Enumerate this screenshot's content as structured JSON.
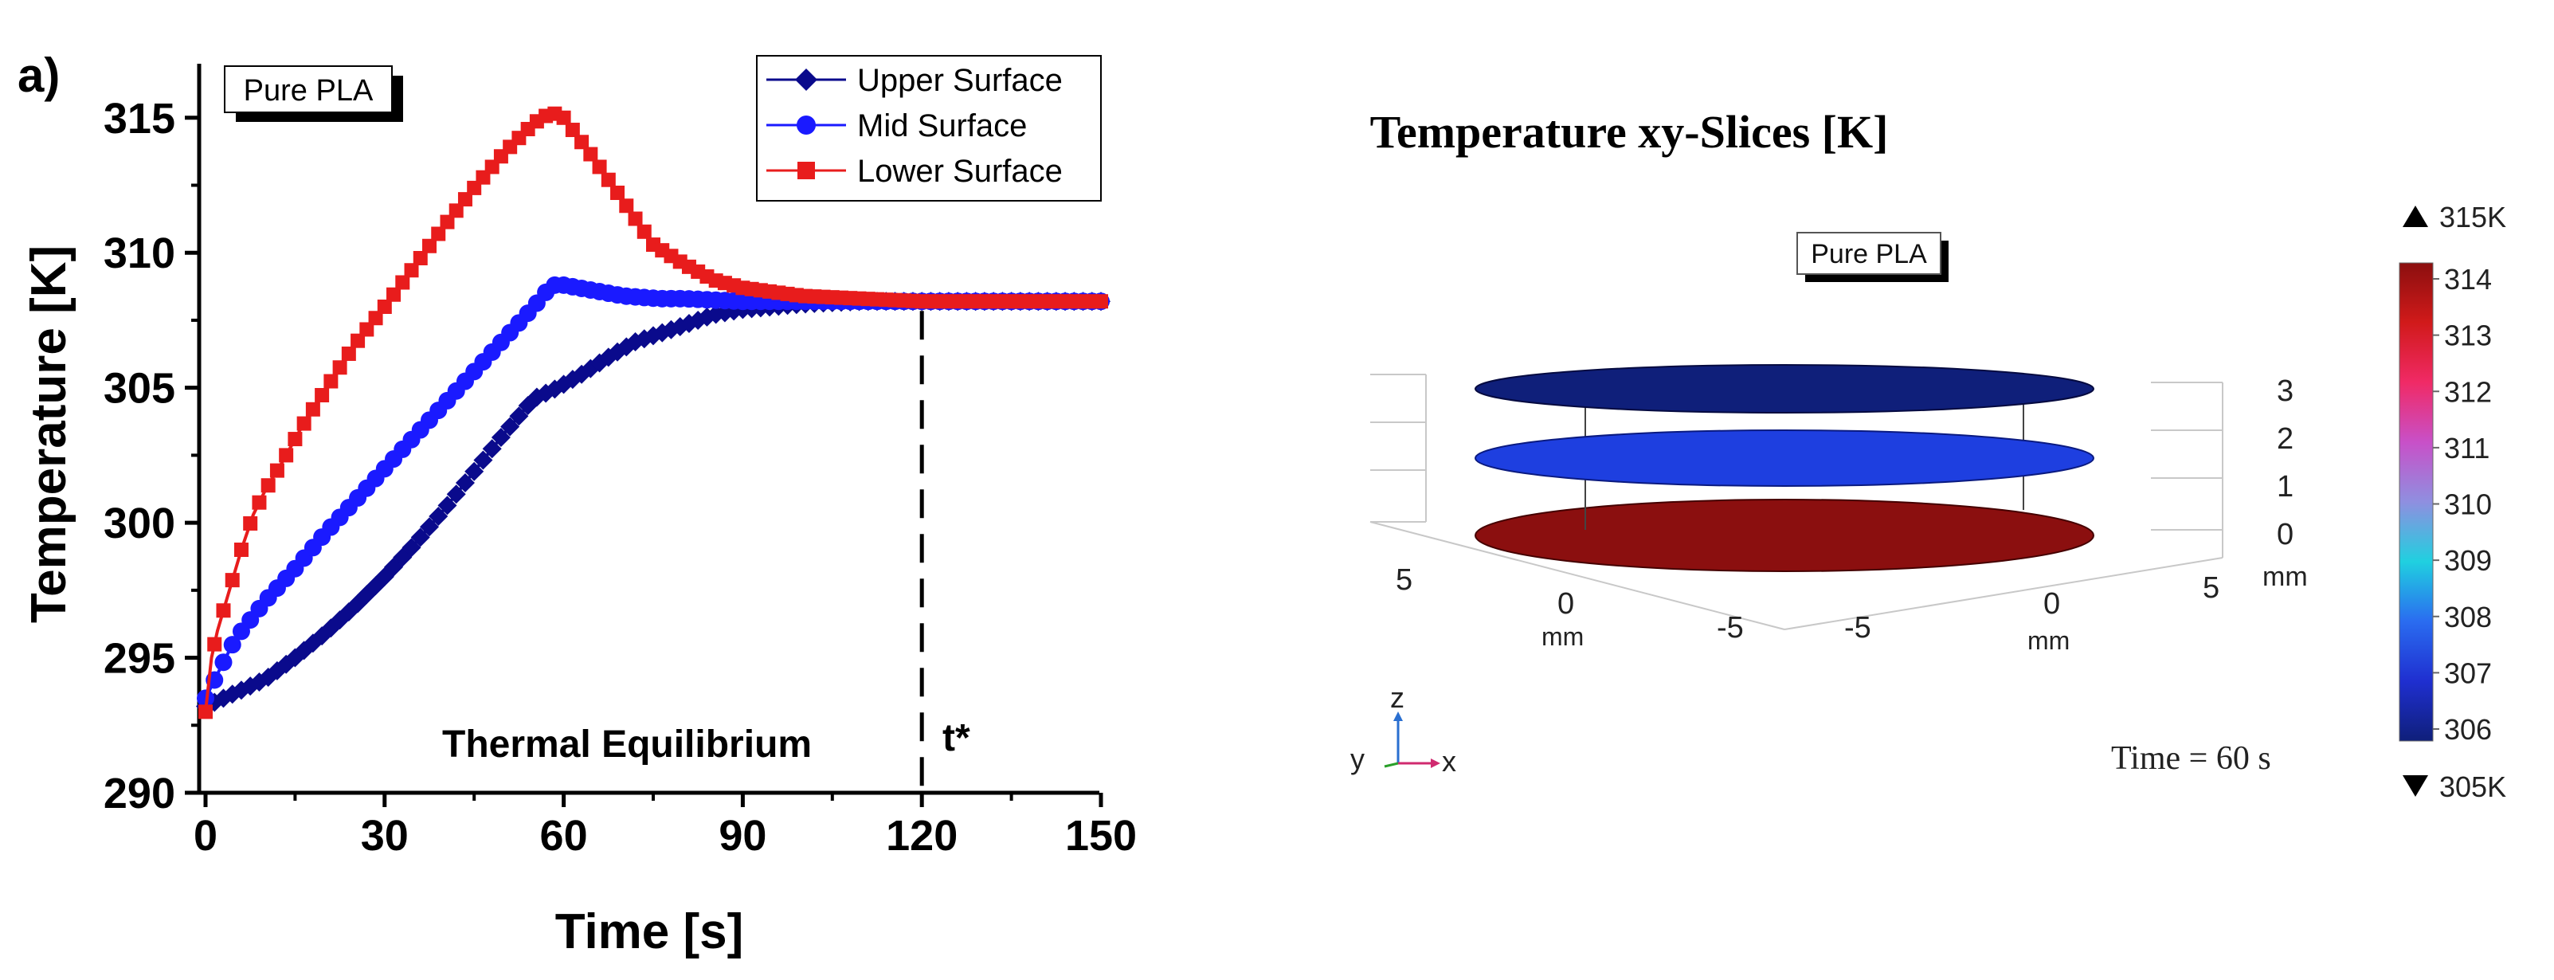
{
  "panel_label": "a)",
  "chart_data": [
    {
      "type": "line",
      "title": "",
      "xlabel": "Time [s]",
      "ylabel": "Temperature [K]",
      "xlim": [
        0,
        150
      ],
      "ylim": [
        290,
        317
      ],
      "xticks": [
        0,
        30,
        60,
        90,
        120,
        150
      ],
      "yticks": [
        290,
        295,
        300,
        305,
        310,
        315
      ],
      "grid": false,
      "legend_position": "top-right",
      "badge": "Pure PLA",
      "annotations": {
        "equilibrium_label": "Thermal Equilibrium",
        "tstar_label": "t*",
        "tstar_x": 120
      },
      "series": [
        {
          "name": "Upper Surface",
          "marker": "diamond",
          "color": "#0a0a8c",
          "x": [
            0,
            2,
            5,
            10,
            15,
            20,
            25,
            30,
            35,
            40,
            45,
            50,
            55,
            59,
            63,
            68,
            72,
            76,
            80,
            85,
            90,
            100,
            110,
            120,
            130,
            140,
            150
          ],
          "y": [
            293.2,
            293.4,
            293.7,
            294.2,
            295.0,
            295.9,
            296.9,
            298.0,
            299.2,
            300.5,
            301.9,
            303.3,
            304.6,
            305.0,
            305.5,
            306.2,
            306.7,
            307.0,
            307.3,
            307.7,
            307.9,
            308.1,
            308.2,
            308.2,
            308.2,
            308.2,
            308.2
          ]
        },
        {
          "name": "Mid Surface",
          "marker": "circle",
          "color": "#1a1aff",
          "x": [
            0,
            2,
            5,
            10,
            15,
            20,
            25,
            30,
            35,
            40,
            45,
            50,
            55,
            58,
            60,
            65,
            70,
            76,
            80,
            90,
            100,
            110,
            120,
            130,
            140,
            150
          ],
          "y": [
            293.5,
            294.4,
            295.7,
            297.1,
            298.3,
            299.6,
            300.8,
            302.0,
            303.2,
            304.4,
            305.6,
            306.8,
            308.0,
            308.8,
            308.8,
            308.6,
            308.4,
            308.3,
            308.3,
            308.2,
            308.2,
            308.2,
            308.2,
            308.2,
            308.2,
            308.2
          ]
        },
        {
          "name": "Lower Surface",
          "marker": "square",
          "color": "#e81c1c",
          "x": [
            0,
            1,
            2,
            4,
            6,
            8,
            10,
            13,
            16,
            20,
            25,
            30,
            35,
            40,
            45,
            50,
            55,
            58,
            60,
            65,
            70,
            75,
            80,
            85,
            90,
            100,
            110,
            120,
            130,
            140,
            150
          ],
          "y": [
            293.0,
            295.0,
            296.0,
            297.5,
            299.0,
            300.3,
            301.2,
            302.3,
            303.5,
            304.9,
            306.6,
            308.0,
            309.5,
            311.0,
            312.4,
            313.7,
            314.8,
            315.2,
            315.0,
            313.5,
            311.9,
            310.3,
            309.6,
            309.0,
            308.7,
            308.4,
            308.3,
            308.2,
            308.2,
            308.2,
            308.2
          ]
        }
      ]
    },
    {
      "type": "heatmap",
      "title": "Temperature xy-Slices [K]",
      "badge": "Pure PLA",
      "time_label": "Time = 60 s",
      "z_ticks": [
        "0",
        "1",
        "2",
        "3"
      ],
      "z_unit": "mm",
      "x_ticks_left": [
        "5",
        "0",
        "-5"
      ],
      "x_unit_left": "mm",
      "y_ticks_right": [
        "-5",
        "0",
        "5"
      ],
      "y_unit_right": "mm",
      "axes_triad": {
        "z": "z",
        "y": "y",
        "x": "x"
      },
      "slices": [
        {
          "z": 0,
          "temperature": 314.5,
          "color": "#8b0f0f"
        },
        {
          "z": 1.5,
          "temperature": 307.5,
          "color": "#1e3fe0"
        },
        {
          "z": 3,
          "temperature": 305.5,
          "color": "#0f1f7a"
        }
      ],
      "colorbar": {
        "max_label": "315K",
        "min_label": "305K",
        "ticks": [
          "314",
          "313",
          "312",
          "311",
          "310",
          "309",
          "308",
          "307",
          "306"
        ],
        "stops": [
          "#8b0f0f",
          "#d11a1a",
          "#f02a66",
          "#c850c8",
          "#8f8fe0",
          "#20d0e0",
          "#2a6cf0",
          "#1f2fd0",
          "#0f1f7a"
        ]
      }
    }
  ]
}
